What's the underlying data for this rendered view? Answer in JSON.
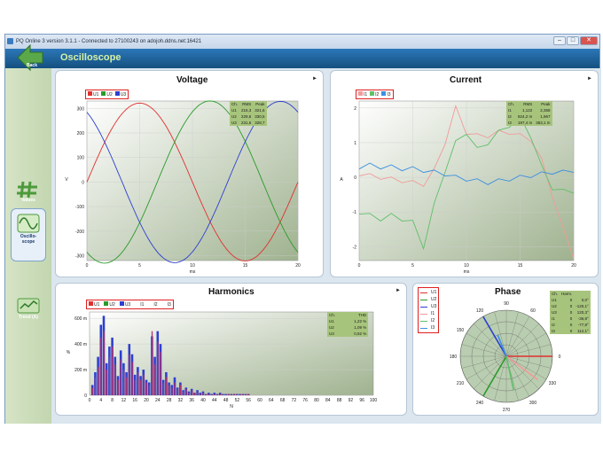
{
  "window": {
    "title": "PQ Online 3 version 3.1.1  - Connected to 27100243 on adojoh.ddns.net:16421"
  },
  "header": {
    "title": "Oscilloscope"
  },
  "sidebar": {
    "back_label": "Back",
    "items": [
      {
        "label": "Values"
      },
      {
        "label": "Oscillo-scope",
        "label_l1": "Oscillo-",
        "label_l2": "scope"
      },
      {
        "label": "Trend (A)"
      }
    ]
  },
  "colors": {
    "u1": "#e03030",
    "u2": "#2a9a2a",
    "u3": "#2c3fcf",
    "i1": "#f29a9a",
    "i2": "#5fbf6a",
    "i3": "#3b8fe0"
  },
  "voltage": {
    "title": "Voltage",
    "legend": [
      "U1",
      "U2",
      "U3"
    ],
    "ylabel": "V",
    "xlabel": "ms",
    "yticks": [
      "300",
      "200",
      "100",
      "0",
      "-100",
      "-200",
      "-300"
    ],
    "xticks": [
      "0",
      "5",
      "10",
      "15",
      "20"
    ],
    "table": {
      "headers": [
        "Ch.",
        "RMS",
        "Peak"
      ],
      "rows": [
        [
          "U1",
          "215,3",
          "321,6"
        ],
        [
          "U2",
          "229,6",
          "330,5"
        ],
        [
          "U3",
          "231,6",
          "328,7"
        ]
      ]
    }
  },
  "current": {
    "title": "Current",
    "legend": [
      "I1",
      "I2",
      "I3"
    ],
    "ylabel": "A",
    "xlabel": "ms",
    "yticks": [
      "2",
      "1",
      "0",
      "-1",
      "-2"
    ],
    "xticks": [
      "0",
      "5",
      "10",
      "15",
      "20"
    ],
    "table": {
      "headers": [
        "Ch.",
        "RMS",
        "Peak"
      ],
      "rows": [
        [
          "I1",
          "1,122",
          "2,358"
        ],
        [
          "I2",
          "824,2 m",
          "1,967"
        ],
        [
          "I3",
          "197,4 m",
          "353,1 m"
        ]
      ]
    }
  },
  "harmonics": {
    "title": "Harmonics",
    "legend": [
      "U1",
      "U2",
      "U3",
      "I1",
      "I2",
      "I3"
    ],
    "ylabel": "%",
    "xlabel": "N",
    "yticks": [
      "600 m",
      "400 m",
      "200 m",
      "0"
    ],
    "xticks": [
      "0",
      "4",
      "8",
      "12",
      "16",
      "20",
      "24",
      "28",
      "32",
      "36",
      "40",
      "44",
      "48",
      "52",
      "56",
      "60",
      "64",
      "68",
      "72",
      "76",
      "80",
      "84",
      "88",
      "92",
      "96",
      "100"
    ],
    "table": {
      "headers": [
        "Ch.",
        "THD"
      ],
      "rows": [
        [
          "U1",
          "1,22 %"
        ],
        [
          "U2",
          "1,09 %"
        ],
        [
          "U3",
          "0,92 %"
        ]
      ]
    }
  },
  "phase": {
    "title": "Phase",
    "legend": [
      "U1",
      "U2",
      "U3",
      "I1",
      "I2",
      "I3"
    ],
    "angle_labels": [
      "90",
      "60",
      "30",
      "0",
      "330",
      "300",
      "270",
      "240",
      "210",
      "180",
      "150",
      "120"
    ],
    "table": {
      "headers": [
        "Ch.",
        "Harm."
      ],
      "rows": [
        [
          "U1",
          "0",
          "0,0°"
        ],
        [
          "U2",
          "0",
          "-120,1°"
        ],
        [
          "U3",
          "0",
          "120,3°"
        ],
        [
          "I1",
          "0",
          "-36,8°"
        ],
        [
          "I2",
          "0",
          "-77,8°"
        ],
        [
          "I3",
          "0",
          "112,1°"
        ]
      ]
    }
  },
  "chart_data": [
    {
      "type": "line",
      "title": "Voltage",
      "xlabel": "ms",
      "ylabel": "V",
      "xlim": [
        0,
        20
      ],
      "ylim": [
        -320,
        330
      ],
      "series": [
        {
          "name": "U1",
          "amplitude": 321.6,
          "phase_deg": 0
        },
        {
          "name": "U2",
          "amplitude": 330.5,
          "phase_deg": -120
        },
        {
          "name": "U3",
          "amplitude": 328.7,
          "phase_deg": 120
        }
      ]
    },
    {
      "type": "line",
      "title": "Current",
      "xlabel": "ms",
      "ylabel": "A",
      "xlim": [
        0,
        20
      ],
      "ylim": [
        -2.4,
        2.2
      ],
      "x": [
        0,
        1,
        2,
        3,
        4,
        5,
        6,
        7,
        8,
        9,
        10,
        11,
        12,
        13,
        14,
        15,
        16,
        17,
        18,
        19,
        20
      ],
      "series": [
        {
          "name": "I1",
          "values": [
            0.1,
            0.05,
            0,
            -0.05,
            -0.1,
            -0.15,
            -0.2,
            0.2,
            1.0,
            2.0,
            1.3,
            1.2,
            1.2,
            1.3,
            1.3,
            1.2,
            1.1,
            0.5,
            -0.5,
            -1.5,
            -2.3
          ]
        },
        {
          "name": "I2",
          "values": [
            -1.0,
            -1.1,
            -1.2,
            -1.1,
            -1.2,
            -1.3,
            -2.0,
            -0.8,
            0.2,
            1.0,
            1.3,
            0.8,
            1.0,
            1.3,
            1.5,
            1.7,
            1.2,
            0.3,
            -0.3,
            -0.4,
            -0.4
          ]
        },
        {
          "name": "I3",
          "values": [
            0.3,
            0.35,
            0.3,
            0.3,
            0.25,
            0.25,
            0.2,
            0.15,
            0.1,
            0.0,
            -0.05,
            -0.1,
            -0.15,
            -0.1,
            -0.05,
            0.0,
            0.05,
            0.1,
            0.15,
            0.15,
            0.2
          ]
        }
      ]
    },
    {
      "type": "bar",
      "title": "Harmonics",
      "xlabel": "N",
      "ylabel": "%",
      "ylim": [
        0,
        0.65
      ],
      "categories": [
        1,
        2,
        3,
        4,
        5,
        6,
        7,
        8,
        9,
        10,
        11,
        12,
        13,
        14,
        15,
        16,
        17,
        18,
        19,
        20,
        21,
        22,
        23,
        24,
        25,
        26,
        27,
        28,
        29,
        30,
        31,
        32,
        33,
        34,
        35,
        36,
        37,
        38,
        39,
        40,
        41,
        42,
        43,
        44,
        45,
        46,
        47,
        48,
        49,
        50,
        51,
        52,
        53,
        54,
        55,
        56
      ],
      "series": [
        {
          "name": "U3",
          "values": [
            0.08,
            0.18,
            0.3,
            0.55,
            0.62,
            0.25,
            0.38,
            0.45,
            0.3,
            0.15,
            0.35,
            0.25,
            0.18,
            0.4,
            0.32,
            0.16,
            0.22,
            0.15,
            0.2,
            0.12,
            0.1,
            0.46,
            0.3,
            0.5,
            0.4,
            0.12,
            0.18,
            0.1,
            0.08,
            0.14,
            0.06,
            0.1,
            0.04,
            0.06,
            0.03,
            0.05,
            0.02,
            0.04,
            0.02,
            0.03,
            0.01,
            0.02,
            0.01,
            0.02,
            0.01,
            0.02,
            0.01,
            0.01,
            0.01,
            0.01,
            0.01,
            0.01,
            0.01,
            0.01,
            0.01,
            0.01
          ]
        },
        {
          "name": "U1",
          "values": [
            0.06,
            0.14,
            0.22,
            0.45,
            0.5,
            0.2,
            0.3,
            0.38,
            0.24,
            0.12,
            0.28,
            0.2,
            0.14,
            0.32,
            0.26,
            0.12,
            0.18,
            0.12,
            0.16,
            0.1,
            0.08,
            0.5,
            0.24,
            0.42,
            0.34,
            0.1,
            0.14,
            0.08,
            0.06,
            0.1,
            0.05,
            0.08,
            0.03,
            0.05,
            0.02,
            0.04,
            0.02,
            0.03,
            0.01,
            0.02,
            0.01,
            0.01,
            0.01,
            0.01,
            0.01,
            0.01,
            0.01,
            0.01,
            0.01,
            0.01,
            0.01,
            0.01,
            0.01,
            0.01,
            0.01,
            0.01
          ]
        }
      ]
    },
    {
      "type": "polar",
      "title": "Phase",
      "series": [
        {
          "name": "U1",
          "angle_deg": 0.0,
          "magnitude": 1.0
        },
        {
          "name": "U2",
          "angle_deg": -120.1,
          "magnitude": 1.0
        },
        {
          "name": "U3",
          "angle_deg": 120.3,
          "magnitude": 1.0
        },
        {
          "name": "I1",
          "angle_deg": -36.8,
          "magnitude": 0.85
        },
        {
          "name": "I2",
          "angle_deg": -77.8,
          "magnitude": 0.75
        },
        {
          "name": "I3",
          "angle_deg": 112.1,
          "magnitude": 0.5
        }
      ]
    }
  ]
}
